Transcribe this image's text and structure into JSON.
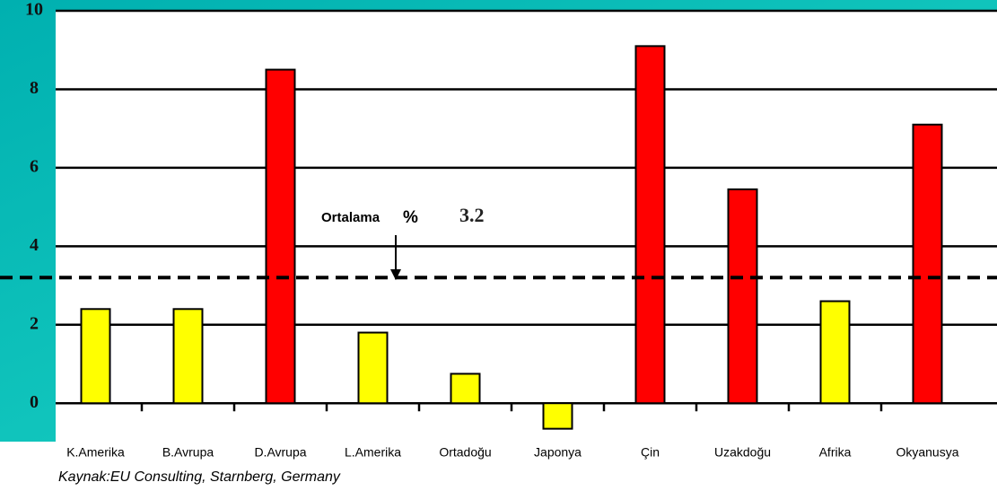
{
  "chart_data": {
    "type": "bar",
    "categories": [
      "K.Amerika",
      "B.Avrupa",
      "D.Avrupa",
      "L.Amerika",
      "Ortadoğu",
      "Japonya",
      "Çin",
      "Uzakdoğu",
      "Afrika",
      "Okyanusya"
    ],
    "values": [
      2.4,
      2.4,
      8.5,
      1.8,
      0.75,
      -0.65,
      9.1,
      5.45,
      2.6,
      7.1
    ],
    "colors": [
      "#ffff00",
      "#ffff00",
      "#ff0000",
      "#ffff00",
      "#ffff00",
      "#ffff00",
      "#ff0000",
      "#ff0000",
      "#ffff00",
      "#ff0000"
    ],
    "ylim": [
      -0.8,
      10
    ],
    "yticks": [
      0,
      2,
      4,
      6,
      8,
      10
    ],
    "grid": true,
    "average": {
      "label": "Ortalama",
      "unit": "%",
      "value_label": "3.2",
      "value": 3.2
    },
    "source": "Kaynak:EU Consulting, Starnberg, Germany"
  }
}
